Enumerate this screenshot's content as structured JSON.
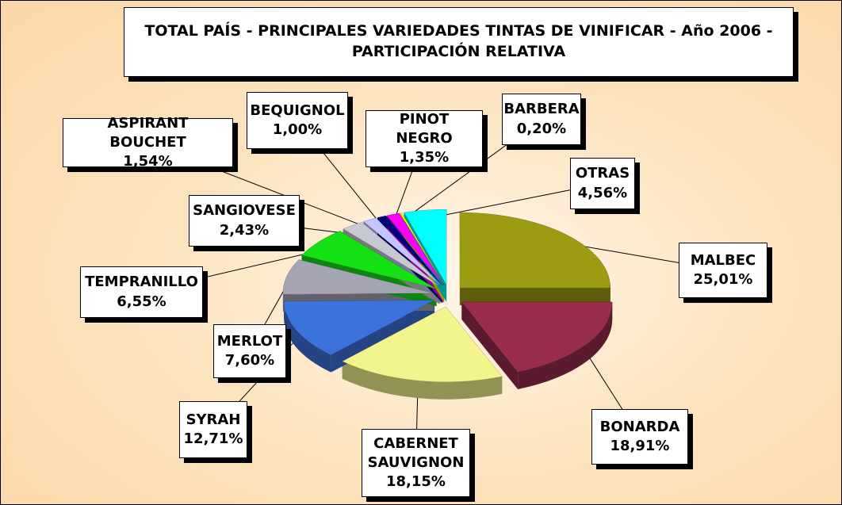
{
  "chart_data": {
    "type": "pie",
    "title": "TOTAL PAÍS - PRINCIPALES VARIEDADES TINTAS DE VINIFICAR  - Año 2006 -",
    "subtitle": "PARTICIPACIÓN RELATIVA",
    "categories": [
      "MALBEC",
      "BONARDA",
      "CABERNET SAUVIGNON",
      "SYRAH",
      "MERLOT",
      "TEMPRANILLO",
      "SANGIOVESE",
      "ASPIRANT BOUCHET",
      "BEQUIGNOL",
      "PINOT NEGRO",
      "BARBERA",
      "OTRAS"
    ],
    "values": [
      25.01,
      18.91,
      18.15,
      12.71,
      7.6,
      6.55,
      2.43,
      1.54,
      1.0,
      1.35,
      0.2,
      4.56
    ],
    "value_labels": [
      "25,01%",
      "18,91%",
      "18,15%",
      "12,71%",
      "7,60%",
      "6,55%",
      "2,43%",
      "1,54%",
      "1,00%",
      "1,35%",
      "0,20%",
      "4,56%"
    ],
    "colors": [
      "#9c9c12",
      "#9a2c4e",
      "#f4f48c",
      "#3c72dc",
      "#a4a4b4",
      "#14e014",
      "#c8c8d2",
      "#c4c4ff",
      "#000080",
      "#ff00ff",
      "#ffff00",
      "#00ffff"
    ]
  }
}
